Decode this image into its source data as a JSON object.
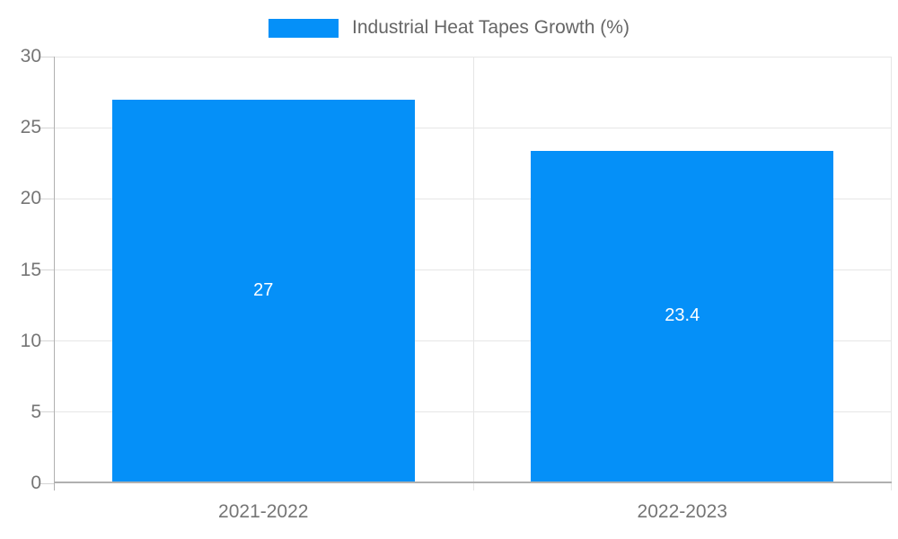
{
  "legend": {
    "label": "Industrial Heat Tapes Growth (%)"
  },
  "colors": {
    "bar": "#0590f8",
    "legend_text": "#666666",
    "axis_text": "#757575",
    "gridline": "#e6e6e6",
    "tick": "#d5d5d5",
    "axis_line": "#b0b0b0",
    "bar_label": "#ffffff",
    "background": "#ffffff"
  },
  "chart_data": {
    "type": "bar",
    "categories": [
      "2021-2022",
      "2022-2023"
    ],
    "series": [
      {
        "name": "Industrial Heat Tapes Growth (%)",
        "values": [
          27,
          23.4
        ]
      }
    ],
    "bar_labels": [
      "27",
      "23.4"
    ],
    "title": "",
    "xlabel": "",
    "ylabel": "",
    "ylim": [
      0,
      30
    ],
    "yticks": [
      0,
      5,
      10,
      15,
      20,
      25,
      30
    ],
    "grid": true,
    "legend_position": "top"
  }
}
